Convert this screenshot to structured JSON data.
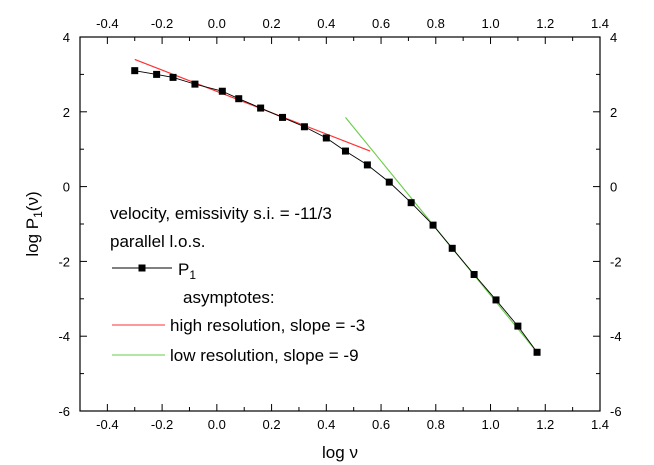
{
  "chart_data": {
    "type": "line",
    "xlabel": "log ν",
    "ylabel": "log P",
    "ylabel_sub": "1",
    "ylabel_suffix": "(ν)",
    "xlim": [
      -0.5,
      1.4
    ],
    "ylim": [
      -6,
      4
    ],
    "grid": false,
    "x_ticks": [
      -0.4,
      -0.2,
      0.0,
      0.2,
      0.4,
      0.6,
      0.8,
      1.0,
      1.2,
      1.4
    ],
    "x_tick_labels": [
      "-0.4",
      "-0.2",
      "0.0",
      "0.2",
      "0.4",
      "0.6",
      "0.8",
      "1.0",
      "1.2",
      "1.4"
    ],
    "y_ticks": [
      -6,
      -4,
      -2,
      0,
      2,
      4
    ],
    "y_tick_labels": [
      "-6",
      "-4",
      "-2",
      "0",
      "2",
      "4"
    ],
    "annotations": [
      "velocity, emissivity s.i. = -11/3",
      "parallel l.o.s."
    ],
    "legend_header": "asymptotes:",
    "series": [
      {
        "name": "P",
        "name_sub": "1",
        "color": "#000000",
        "marker": "square",
        "x": [
          -0.3,
          -0.22,
          -0.16,
          -0.08,
          0.02,
          0.08,
          0.16,
          0.24,
          0.32,
          0.4,
          0.47,
          0.55,
          0.63,
          0.71,
          0.79,
          0.86,
          0.94,
          1.02,
          1.1,
          1.17
        ],
        "y": [
          3.1,
          3.0,
          2.92,
          2.74,
          2.55,
          2.35,
          2.1,
          1.85,
          1.6,
          1.3,
          0.95,
          0.58,
          0.12,
          -0.43,
          -1.03,
          -1.65,
          -2.35,
          -3.03,
          -3.73,
          -4.43
        ]
      },
      {
        "name": "high resolution, slope = -3",
        "color": "#ff3030",
        "x": [
          -0.3,
          0.56
        ],
        "y": [
          3.4,
          0.95
        ]
      },
      {
        "name": "low resolution, slope = -9",
        "color": "#66cc44",
        "x": [
          0.47,
          1.17
        ],
        "y": [
          1.85,
          -4.43
        ]
      }
    ]
  }
}
